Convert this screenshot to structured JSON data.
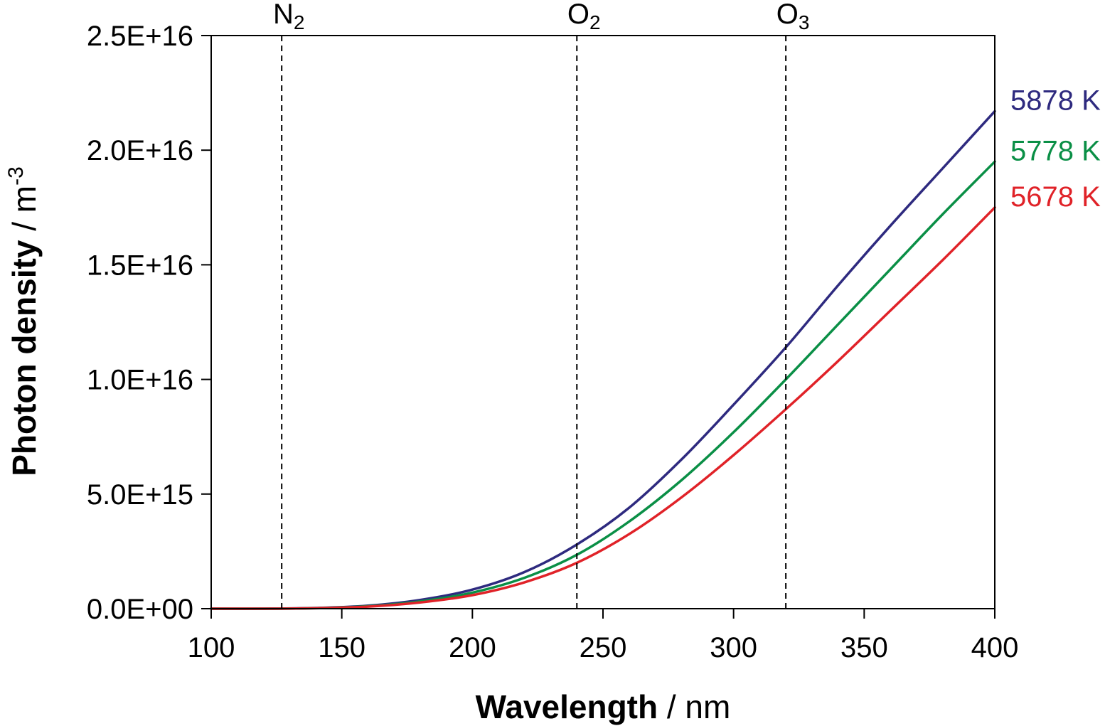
{
  "chart_data": {
    "type": "line",
    "xlabel": {
      "bold": "Wavelength",
      "rest": " / nm"
    },
    "ylabel": {
      "bold": "Photon density",
      "rest": " / m",
      "sup": "-3"
    },
    "xlim": [
      100,
      400
    ],
    "ylim": [
      0,
      2.5e+16
    ],
    "x_ticks": [
      100,
      150,
      200,
      250,
      300,
      350,
      400
    ],
    "x_tick_labels": [
      "100",
      "150",
      "200",
      "250",
      "300",
      "350",
      "400"
    ],
    "y_ticks": [
      0,
      5000000000000000.0,
      1e+16,
      1.5e+16,
      2e+16,
      2.5e+16
    ],
    "y_tick_labels": [
      "0.0E+00",
      "5.0E+15",
      "1.0E+16",
      "1.5E+16",
      "2.0E+16",
      "2.5E+16"
    ],
    "grid": false,
    "x": [
      100,
      120,
      140,
      160,
      180,
      200,
      220,
      240,
      260,
      280,
      300,
      320,
      340,
      360,
      380,
      400
    ],
    "series": [
      {
        "name": "5878 K",
        "color": "#2e2a7f",
        "values": [
          0,
          0,
          30000000000000.0,
          130000000000000.0,
          380000000000000.0,
          830000000000000.0,
          1600000000000000.0,
          2800000000000000.0,
          4400000000000000.0,
          6500000000000000.0,
          8900000000000000.0,
          1.14e+16,
          1.41e+16,
          1.67e+16,
          1.92e+16,
          2.17e+16
        ]
      },
      {
        "name": "5778 K",
        "color": "#0a8f46",
        "values": [
          0,
          0,
          25000000000000.0,
          110000000000000.0,
          320000000000000.0,
          700000000000000.0,
          1350000000000000.0,
          2350000000000000.0,
          3800000000000000.0,
          5600000000000000.0,
          7700000000000000.0,
          1e+16,
          1.24e+16,
          1.48e+16,
          1.72e+16,
          1.95e+16
        ]
      },
      {
        "name": "5678 K",
        "color": "#e02228",
        "values": [
          0,
          0,
          20000000000000.0,
          90000000000000.0,
          270000000000000.0,
          590000000000000.0,
          1150000000000000.0,
          2000000000000000.0,
          3250000000000000.0,
          4850000000000000.0,
          6700000000000000.0,
          8700000000000000.0,
          1.08e+16,
          1.3e+16,
          1.52e+16,
          1.75e+16
        ]
      }
    ],
    "vlines": [
      {
        "x": 127,
        "label": "N",
        "sub": "2"
      },
      {
        "x": 240,
        "label": "O",
        "sub": "2"
      },
      {
        "x": 320,
        "label": "O",
        "sub": "3"
      }
    ]
  }
}
